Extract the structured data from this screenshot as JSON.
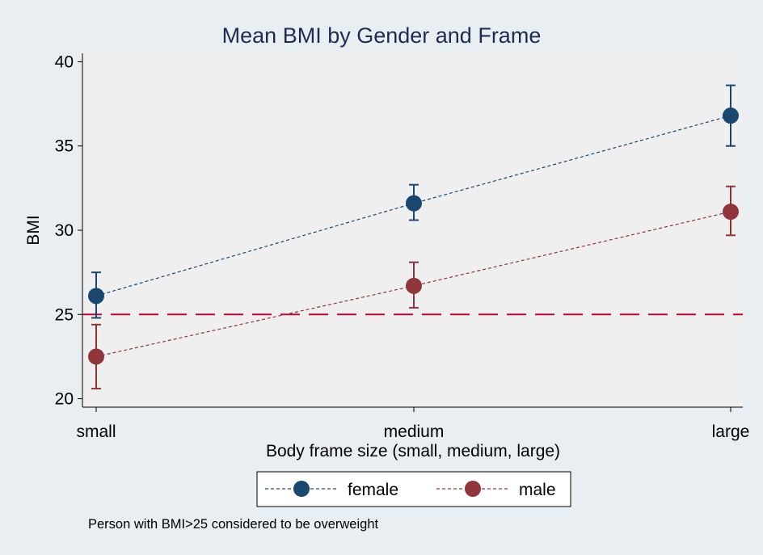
{
  "chart_data": {
    "type": "line",
    "title": "Mean BMI by Gender and Frame",
    "xlabel": "Body frame size (small, medium, large)",
    "ylabel": "BMI",
    "categories": [
      "small",
      "medium",
      "large"
    ],
    "ylim": [
      19.5,
      40.5
    ],
    "yticks": [
      20,
      25,
      30,
      35,
      40
    ],
    "series": [
      {
        "name": "female",
        "color": "#1a476f",
        "values": [
          26.1,
          31.6,
          36.8
        ],
        "ci_low": [
          24.8,
          30.6,
          35.0
        ],
        "ci_high": [
          27.5,
          32.7,
          38.6
        ]
      },
      {
        "name": "male",
        "color": "#90353b",
        "values": [
          22.5,
          26.7,
          31.1
        ],
        "ci_low": [
          20.6,
          25.4,
          29.7
        ],
        "ci_high": [
          24.4,
          28.1,
          32.6
        ]
      }
    ],
    "reference_line": {
      "y": 25,
      "color": "#c10534",
      "style": "long-dash"
    },
    "note": "Person with BMI>25 considered to be overweight",
    "legend_position": "bottom"
  },
  "colors": {
    "background": "#e8eef2",
    "plot_background": "#efefef",
    "axis": "#000000"
  }
}
